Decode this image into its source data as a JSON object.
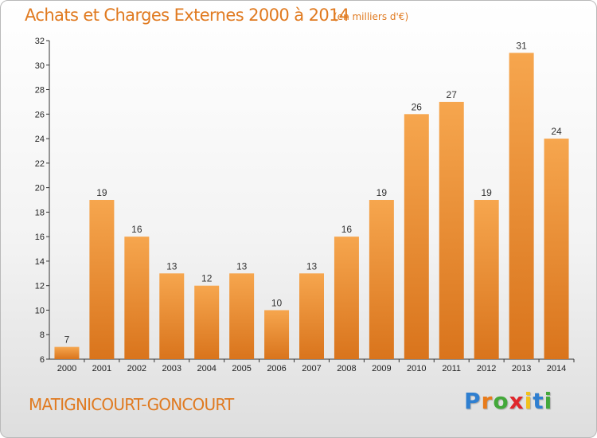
{
  "chart_data": {
    "type": "bar",
    "title": "Achats et Charges Externes 2000 à 2014",
    "subtitle": "(en milliers d'€)",
    "categories": [
      "2000",
      "2001",
      "2002",
      "2003",
      "2004",
      "2005",
      "2006",
      "2007",
      "2008",
      "2009",
      "2010",
      "2011",
      "2012",
      "2013",
      "2014"
    ],
    "values": [
      7,
      19,
      16,
      13,
      12,
      13,
      10,
      13,
      16,
      19,
      26,
      27,
      19,
      31,
      24
    ],
    "ylim": [
      6,
      32
    ],
    "yticks": [
      6,
      8,
      10,
      12,
      14,
      16,
      18,
      20,
      22,
      24,
      26,
      28,
      30,
      32
    ],
    "grid": false,
    "legend": "none",
    "bar_color_light": "#f6a64e",
    "bar_color_dark": "#d9741c"
  },
  "footer": {
    "commune": "MATIGNICOURT-GONCOURT"
  },
  "logo": {
    "letters": [
      "P",
      "r",
      "o",
      "x",
      "i",
      "t",
      "i"
    ],
    "colors": [
      "#2f7fd0",
      "#e87b1a",
      "#43a83a",
      "#e0262b",
      "#f2c21a",
      "#2f7fd0",
      "#43a83a"
    ]
  }
}
